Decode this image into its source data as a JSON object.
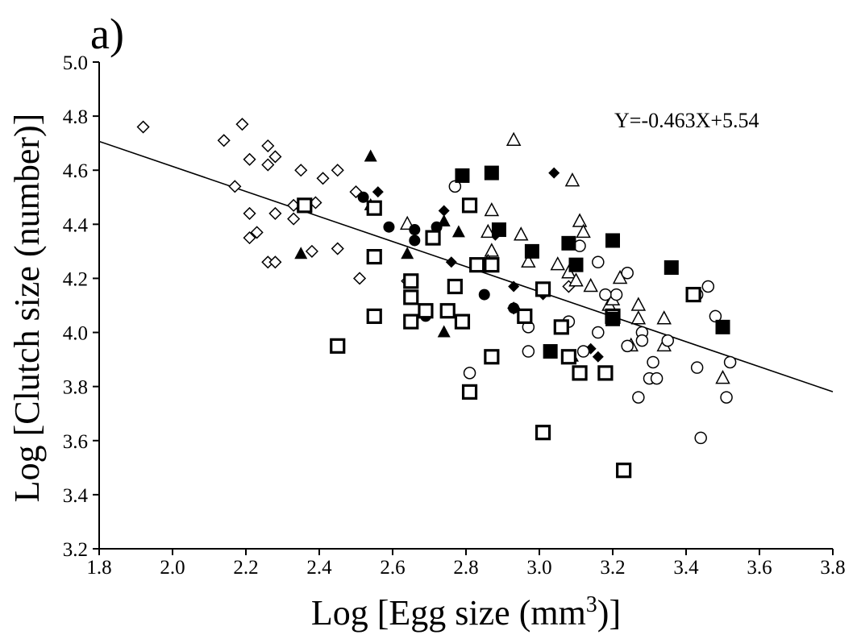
{
  "chart_data": {
    "type": "scatter",
    "panel_label": "a)",
    "xlabel": "Log [Egg size (mm",
    "xlabel_sup": "3",
    "xlabel_end": ")]",
    "ylabel": "Log [Clutch size (number)]",
    "xlim": [
      1.8,
      3.8
    ],
    "ylim": [
      3.2,
      5.0
    ],
    "xticks": [
      "1.8",
      "2.0",
      "2.2",
      "2.4",
      "2.6",
      "2.8",
      "3.0",
      "3.2",
      "3.4",
      "3.6",
      "3.8"
    ],
    "yticks": [
      "3.2",
      "3.4",
      "3.6",
      "3.8",
      "4.0",
      "4.2",
      "4.4",
      "4.6",
      "4.8",
      "5.0"
    ],
    "grid": false,
    "legend": "none",
    "regression": {
      "slope": -0.463,
      "intercept": 5.54,
      "label": "Y=-0.463X+5.54"
    },
    "series": [
      {
        "marker": "diamond-open",
        "points": [
          [
            1.92,
            4.76
          ],
          [
            2.14,
            4.71
          ],
          [
            2.19,
            4.77
          ],
          [
            2.26,
            4.69
          ],
          [
            2.17,
            4.54
          ],
          [
            2.21,
            4.64
          ],
          [
            2.26,
            4.62
          ],
          [
            2.28,
            4.65
          ],
          [
            2.21,
            4.44
          ],
          [
            2.23,
            4.37
          ],
          [
            2.21,
            4.35
          ],
          [
            2.28,
            4.44
          ],
          [
            2.35,
            4.6
          ],
          [
            2.41,
            4.57
          ],
          [
            2.45,
            4.6
          ],
          [
            2.33,
            4.47
          ],
          [
            2.39,
            4.48
          ],
          [
            2.33,
            4.42
          ],
          [
            2.26,
            4.26
          ],
          [
            2.28,
            4.26
          ],
          [
            2.38,
            4.3
          ],
          [
            2.45,
            4.31
          ],
          [
            2.5,
            4.52
          ],
          [
            2.51,
            4.2
          ],
          [
            2.64,
            4.19
          ],
          [
            2.79,
            4.04
          ],
          [
            2.93,
            4.09
          ],
          [
            3.08,
            4.17
          ]
        ]
      },
      {
        "marker": "diamond-filled",
        "points": [
          [
            2.56,
            4.52
          ],
          [
            2.74,
            4.45
          ],
          [
            2.76,
            4.26
          ],
          [
            2.88,
            4.36
          ],
          [
            2.93,
            4.17
          ],
          [
            3.01,
            4.14
          ],
          [
            3.04,
            4.59
          ],
          [
            3.14,
            3.94
          ],
          [
            3.16,
            3.91
          ]
        ]
      },
      {
        "marker": "triangle-open",
        "points": [
          [
            2.93,
            4.71
          ],
          [
            3.09,
            4.56
          ],
          [
            3.11,
            4.41
          ],
          [
            2.87,
            4.45
          ],
          [
            2.95,
            4.36
          ],
          [
            2.86,
            4.37
          ],
          [
            2.64,
            4.4
          ],
          [
            2.97,
            4.26
          ],
          [
            3.05,
            4.25
          ],
          [
            3.08,
            4.22
          ],
          [
            3.14,
            4.17
          ],
          [
            3.22,
            4.2
          ],
          [
            3.12,
            4.37
          ],
          [
            2.87,
            4.3
          ],
          [
            3.1,
            4.19
          ],
          [
            3.19,
            4.1
          ],
          [
            3.2,
            4.12
          ],
          [
            3.27,
            4.1
          ],
          [
            3.27,
            4.05
          ],
          [
            3.34,
            4.05
          ],
          [
            3.25,
            3.95
          ],
          [
            3.34,
            3.95
          ],
          [
            3.5,
            3.83
          ],
          [
            2.86,
            4.26
          ]
        ]
      },
      {
        "marker": "triangle-filled",
        "points": [
          [
            2.54,
            4.65
          ],
          [
            2.54,
            4.47
          ],
          [
            2.35,
            4.29
          ],
          [
            2.64,
            4.29
          ],
          [
            2.74,
            4.41
          ],
          [
            2.78,
            4.37
          ],
          [
            2.74,
            4.0
          ],
          [
            3.09,
            3.91
          ]
        ]
      },
      {
        "marker": "circle-open",
        "points": [
          [
            2.77,
            4.54
          ],
          [
            3.11,
            4.32
          ],
          [
            3.16,
            4.26
          ],
          [
            3.24,
            4.22
          ],
          [
            3.21,
            4.14
          ],
          [
            3.46,
            4.17
          ],
          [
            3.43,
            4.14
          ],
          [
            3.18,
            4.14
          ],
          [
            2.97,
            4.02
          ],
          [
            3.08,
            4.04
          ],
          [
            3.16,
            4.0
          ],
          [
            3.28,
            4.0
          ],
          [
            3.28,
            3.97
          ],
          [
            3.24,
            3.95
          ],
          [
            3.35,
            3.97
          ],
          [
            3.48,
            4.06
          ],
          [
            3.12,
            3.93
          ],
          [
            2.97,
            3.93
          ],
          [
            2.81,
            3.85
          ],
          [
            3.31,
            3.89
          ],
          [
            3.3,
            3.83
          ],
          [
            3.32,
            3.83
          ],
          [
            3.27,
            3.76
          ],
          [
            3.52,
            3.89
          ],
          [
            3.43,
            3.87
          ],
          [
            3.51,
            3.76
          ],
          [
            3.44,
            3.61
          ]
        ]
      },
      {
        "marker": "circle-filled",
        "points": [
          [
            2.52,
            4.5
          ],
          [
            2.59,
            4.39
          ],
          [
            2.66,
            4.38
          ],
          [
            2.66,
            4.34
          ],
          [
            2.72,
            4.39
          ],
          [
            2.69,
            4.06
          ],
          [
            2.85,
            4.14
          ],
          [
            2.93,
            4.09
          ]
        ]
      },
      {
        "marker": "square-open",
        "points": [
          [
            2.36,
            4.47
          ],
          [
            2.55,
            4.46
          ],
          [
            2.55,
            4.28
          ],
          [
            2.81,
            4.47
          ],
          [
            2.55,
            4.06
          ],
          [
            2.45,
            3.95
          ],
          [
            2.65,
            4.19
          ],
          [
            2.65,
            4.13
          ],
          [
            2.71,
            4.35
          ],
          [
            2.77,
            4.17
          ],
          [
            2.83,
            4.25
          ],
          [
            2.87,
            4.25
          ],
          [
            2.69,
            4.08
          ],
          [
            2.75,
            4.08
          ],
          [
            2.65,
            4.04
          ],
          [
            2.79,
            4.04
          ],
          [
            2.96,
            4.06
          ],
          [
            3.01,
            4.16
          ],
          [
            3.06,
            4.02
          ],
          [
            3.08,
            3.91
          ],
          [
            2.87,
            3.91
          ],
          [
            3.11,
            3.85
          ],
          [
            3.18,
            3.85
          ],
          [
            3.2,
            4.06
          ],
          [
            3.42,
            4.14
          ],
          [
            2.81,
            3.78
          ],
          [
            3.01,
            3.63
          ],
          [
            3.23,
            3.49
          ]
        ]
      },
      {
        "marker": "square-filled",
        "points": [
          [
            2.79,
            4.58
          ],
          [
            2.87,
            4.59
          ],
          [
            2.89,
            4.38
          ],
          [
            2.98,
            4.3
          ],
          [
            3.08,
            4.33
          ],
          [
            3.1,
            4.25
          ],
          [
            3.2,
            4.34
          ],
          [
            3.36,
            4.24
          ],
          [
            3.5,
            4.02
          ],
          [
            3.03,
            3.93
          ],
          [
            3.2,
            4.05
          ]
        ]
      }
    ]
  }
}
